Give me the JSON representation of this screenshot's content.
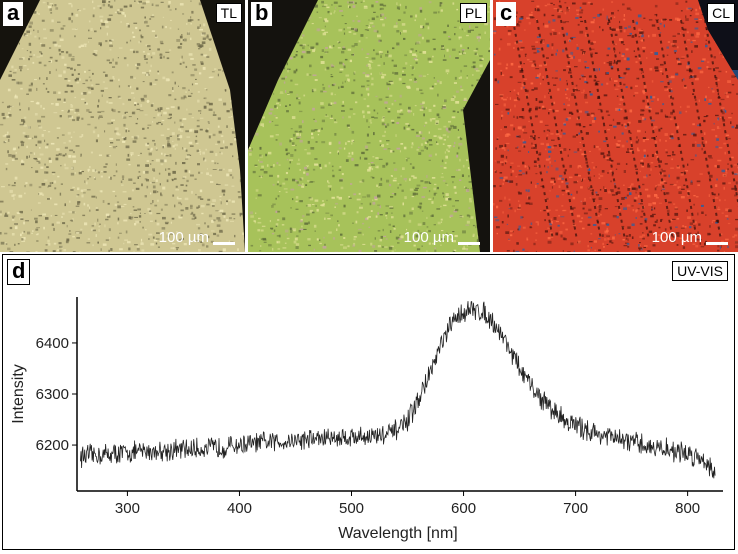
{
  "panels": [
    {
      "letter": "a",
      "tag": "TL",
      "scale": "100 µm",
      "colors": {
        "bg": "#15130d",
        "fill": "#cfc792",
        "speck": "#efe8b8",
        "dark": "#6f6a4a"
      }
    },
    {
      "letter": "b",
      "tag": "PL",
      "scale": "100 µm",
      "colors": {
        "bg": "#14120e",
        "fill": "#a7c25a",
        "speck": "#e4e39a",
        "dark": "#5f6e3a",
        "accent": "#c5a3a0"
      }
    },
    {
      "letter": "c",
      "tag": "CL",
      "scale": "100 µm",
      "colors": {
        "bg": "#0e0f18",
        "fill": "#d8412b",
        "speck": "#ff6a45",
        "dark": "#5a1810",
        "accent": "#2a5fa0"
      }
    }
  ],
  "spectrum": {
    "letter": "d",
    "tag": "UV-VIS"
  },
  "chart_data": {
    "type": "line",
    "xlabel": "Wavelength [nm]",
    "ylabel": "Intensity",
    "xlim": [
      255,
      828
    ],
    "ylim": [
      6110,
      6490
    ],
    "xticks": [
      300,
      400,
      500,
      600,
      700,
      800
    ],
    "yticks": [
      6200,
      6300,
      6400
    ],
    "series": [
      {
        "line_color": "#222222",
        "x": [
          258,
          280,
          300,
          320,
          340,
          360,
          380,
          400,
          420,
          440,
          460,
          480,
          500,
          520,
          535,
          550,
          560,
          570,
          580,
          590,
          600,
          610,
          620,
          630,
          640,
          650,
          660,
          670,
          680,
          690,
          700,
          720,
          740,
          760,
          780,
          800,
          815,
          825
        ],
        "y": [
          6178,
          6182,
          6185,
          6188,
          6190,
          6192,
          6195,
          6200,
          6204,
          6208,
          6212,
          6214,
          6216,
          6218,
          6222,
          6245,
          6290,
          6340,
          6395,
          6440,
          6462,
          6465,
          6458,
          6430,
          6395,
          6350,
          6315,
          6290,
          6268,
          6250,
          6238,
          6222,
          6210,
          6200,
          6192,
          6183,
          6172,
          6145
        ],
        "noise_amplitude": 22
      }
    ]
  }
}
